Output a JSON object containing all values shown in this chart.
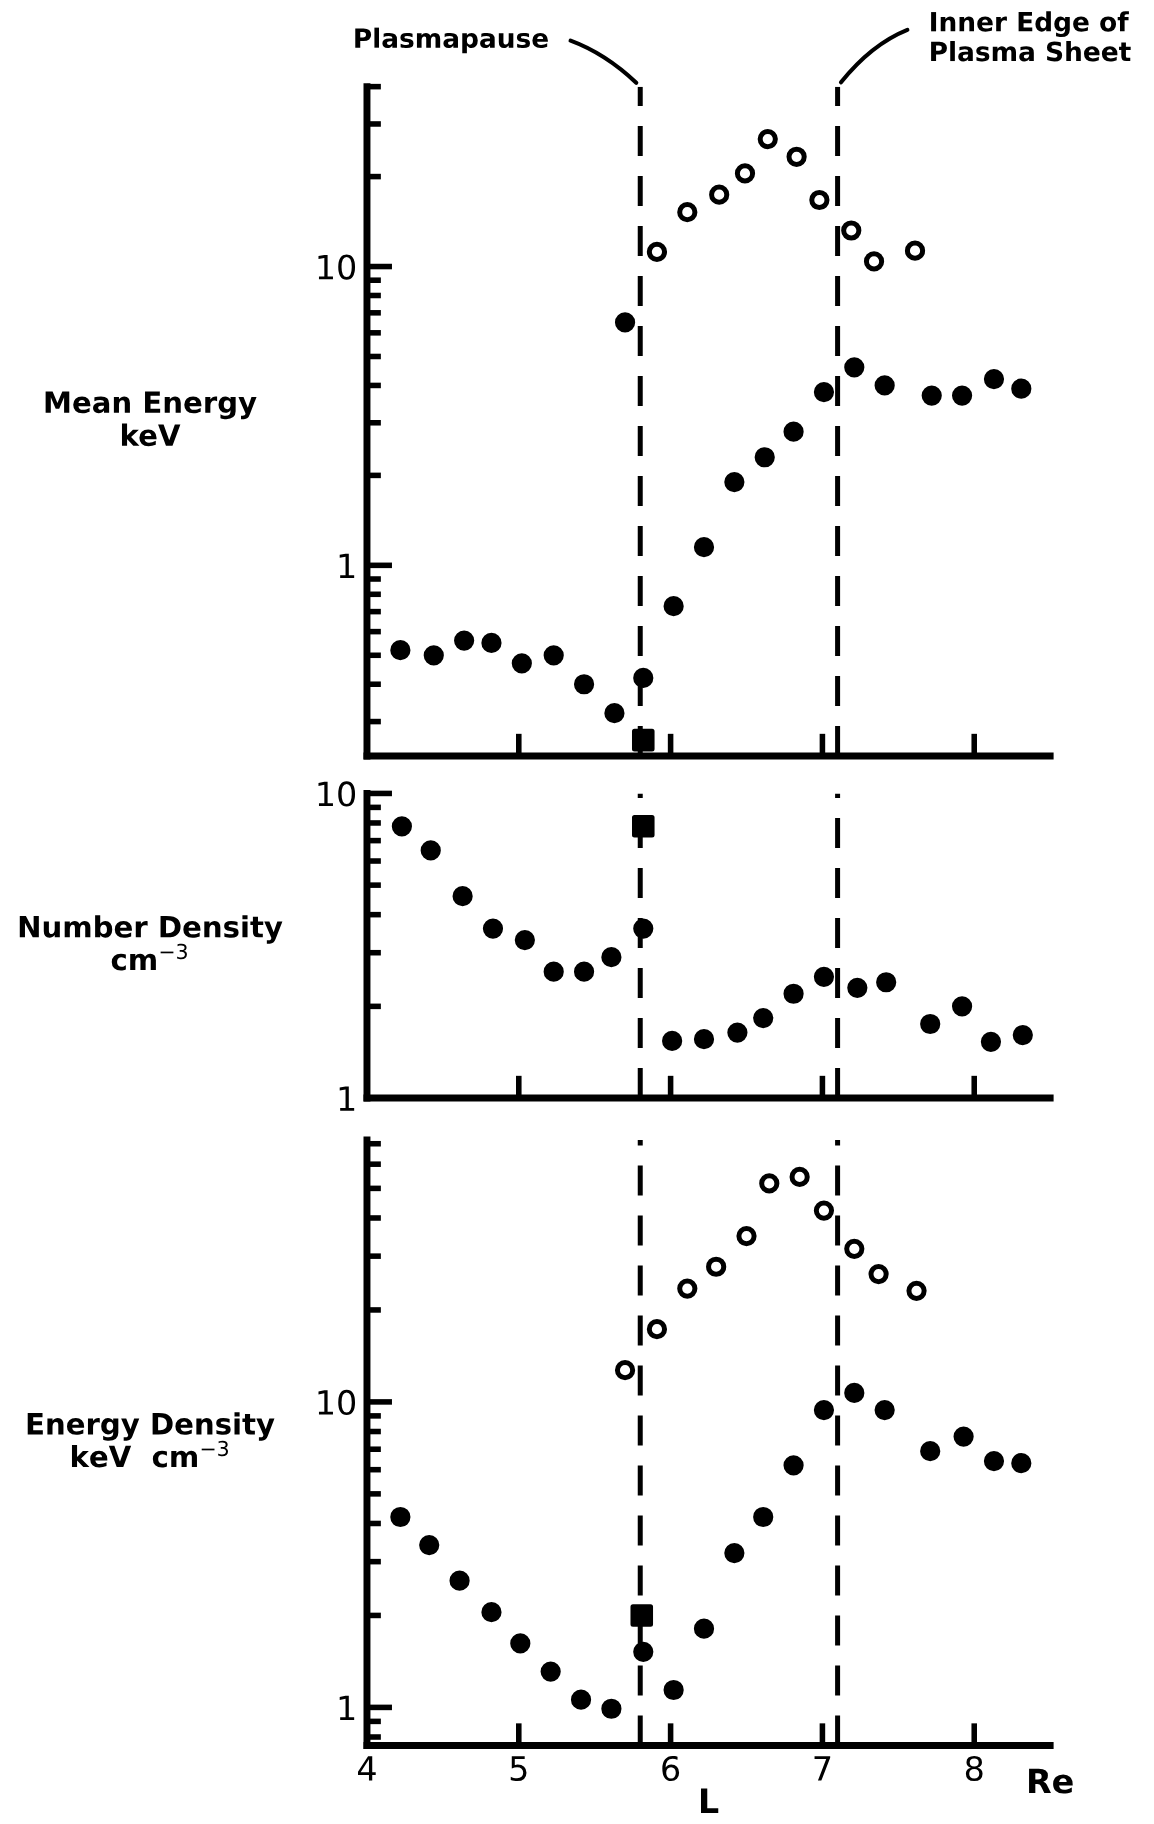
{
  "chart_data": [
    {
      "type": "scatter",
      "ylabel": "Mean Energy\nkeV",
      "log": "y",
      "xlim": [
        4,
        8.5
      ],
      "ylim": [
        0.23,
        40
      ],
      "xticks": [
        {
          "value": 4,
          "label": null
        },
        {
          "value": 5,
          "label": null
        },
        {
          "value": 6,
          "label": null
        },
        {
          "value": 7,
          "label": null
        },
        {
          "value": 8,
          "label": null
        }
      ],
      "yticks": [
        {
          "value": 0.3,
          "label": null
        },
        {
          "value": 0.4,
          "label": null
        },
        {
          "value": 0.5,
          "label": null
        },
        {
          "value": 0.6,
          "label": null
        },
        {
          "value": 0.7,
          "label": null
        },
        {
          "value": 0.8,
          "label": null
        },
        {
          "value": 0.9,
          "label": null
        },
        1,
        {
          "value": 2,
          "label": null
        },
        {
          "value": 3,
          "label": null
        },
        {
          "value": 4,
          "label": null
        },
        {
          "value": 5,
          "label": null
        },
        {
          "value": 6,
          "label": null
        },
        {
          "value": 7,
          "label": null
        },
        {
          "value": 8,
          "label": null
        },
        {
          "value": 9,
          "label": null
        },
        10,
        {
          "value": 20,
          "label": null
        },
        {
          "value": 30,
          "label": null
        },
        {
          "value": 40,
          "label": null
        }
      ],
      "tick_labels": "y",
      "grid": false,
      "legend": false,
      "series": [
        {
          "color": "#ffffff",
          "marker": "circle",
          "x": [
            5.91,
            6.11,
            6.32,
            6.49,
            6.64,
            6.83,
            6.98,
            7.19,
            7.34,
            7.61
          ],
          "values": [
            11.2,
            15.2,
            17.4,
            20.5,
            26.7,
            23.3,
            16.7,
            13.2,
            10.4,
            11.3
          ]
        },
        {
          "color": "#000000",
          "marker": "circle",
          "x": [
            4.22,
            4.44,
            4.64,
            4.82,
            5.02,
            5.23,
            5.43,
            5.63,
            5.82,
            6.02,
            6.22,
            6.42,
            6.62,
            6.81,
            7.01,
            7.21,
            7.41,
            7.72,
            7.92,
            8.13,
            8.31
          ],
          "values": [
            0.52,
            0.5,
            0.56,
            0.55,
            0.47,
            0.5,
            0.4,
            0.32,
            0.42,
            0.73,
            1.15,
            1.9,
            2.3,
            2.8,
            3.8,
            4.6,
            4.0,
            3.7,
            3.7,
            4.2,
            3.9
          ]
        },
        {
          "color": "#000000",
          "marker": "circle",
          "x": [
            5.7
          ],
          "values": [
            6.5
          ]
        },
        {
          "color": "#000000",
          "marker": "square",
          "x": [
            5.82
          ],
          "values": [
            0.26
          ]
        }
      ],
      "ref_lines": [
        {
          "axis": "x",
          "value": 5.8,
          "label": "Plasmapause",
          "line_style": "dashed",
          "color": "#000000"
        },
        {
          "axis": "x",
          "value": 7.1,
          "label": "Inner Edge of\nPlasma Sheet",
          "line_style": "dashed",
          "color": "#000000"
        }
      ]
    },
    {
      "type": "scatter",
      "ylabel": "Number Density\ncm$^{−3}$",
      "log": "y",
      "xlim": [
        4,
        8.5
      ],
      "ylim": [
        1,
        10
      ],
      "xticks": [
        {
          "value": 4,
          "label": null
        },
        {
          "value": 5,
          "label": null
        },
        {
          "value": 6,
          "label": null
        },
        {
          "value": 7,
          "label": null
        },
        {
          "value": 8,
          "label": null
        }
      ],
      "yticks": [
        1,
        {
          "value": 2,
          "label": null
        },
        {
          "value": 3,
          "label": null
        },
        {
          "value": 4,
          "label": null
        },
        {
          "value": 5,
          "label": null
        },
        {
          "value": 6,
          "label": null
        },
        {
          "value": 7,
          "label": null
        },
        {
          "value": 8,
          "label": null
        },
        {
          "value": 9,
          "label": null
        },
        10
      ],
      "tick_labels": "y",
      "grid": false,
      "legend": false,
      "series": [
        {
          "color": "#000000",
          "marker": "circle",
          "x": [
            4.23,
            4.42,
            4.63,
            4.83,
            5.04,
            5.23,
            5.43,
            5.61,
            5.82,
            6.01,
            6.22,
            6.44,
            6.61,
            6.81,
            7.01,
            7.23,
            7.42,
            7.71,
            7.92,
            8.11,
            8.32
          ],
          "values": [
            7.8,
            6.5,
            4.6,
            3.6,
            3.3,
            2.6,
            2.6,
            2.9,
            3.6,
            1.54,
            1.56,
            1.64,
            1.83,
            2.2,
            2.5,
            2.3,
            2.4,
            1.75,
            2.0,
            1.53,
            1.61
          ]
        },
        {
          "color": "#000000",
          "marker": "square",
          "x": [
            5.82
          ],
          "values": [
            7.8
          ]
        }
      ],
      "ref_lines": [
        {
          "axis": "x",
          "value": 5.8,
          "line_style": "dashed",
          "color": "#000000"
        },
        {
          "axis": "x",
          "value": 7.1,
          "line_style": "dashed",
          "color": "#000000"
        }
      ]
    },
    {
      "type": "scatter",
      "ylabel": "Energy Density\nkeV  cm$^{−3}$",
      "xlabel": "L",
      "log": "y",
      "xlim": [
        4,
        8.5
      ],
      "ylim": [
        0.75,
        72
      ],
      "xticks": [
        4,
        5,
        6,
        7,
        8
      ],
      "yticks": [
        {
          "value": 0.8,
          "label": null
        },
        {
          "value": 0.9,
          "label": null
        },
        1,
        {
          "value": 2,
          "label": null
        },
        {
          "value": 3,
          "label": null
        },
        {
          "value": 4,
          "label": null
        },
        {
          "value": 5,
          "label": null
        },
        {
          "value": 6,
          "label": null
        },
        {
          "value": 7,
          "label": null
        },
        {
          "value": 8,
          "label": null
        },
        {
          "value": 9,
          "label": null
        },
        10,
        {
          "value": 20,
          "label": null
        },
        {
          "value": 30,
          "label": null
        },
        {
          "value": 40,
          "label": null
        },
        {
          "value": 50,
          "label": null
        },
        {
          "value": 60,
          "label": null
        },
        {
          "value": 70,
          "label": null
        }
      ],
      "grid": false,
      "legend": false,
      "annotations": [
        "Re"
      ],
      "series": [
        {
          "color": "#ffffff",
          "marker": "circle",
          "x": [
            5.7,
            5.91,
            6.11,
            6.3,
            6.5,
            6.65,
            6.85,
            7.01,
            7.21,
            7.37,
            7.62
          ],
          "values": [
            12.7,
            17.3,
            23.5,
            27.7,
            34.9,
            51.9,
            54.5,
            42.3,
            31.7,
            26.2,
            23.1
          ]
        },
        {
          "color": "#000000",
          "marker": "circle",
          "x": [
            4.22,
            4.41,
            4.61,
            4.82,
            5.01,
            5.21,
            5.41,
            5.61,
            5.82,
            6.02,
            6.22,
            6.42,
            6.61,
            6.81,
            7.01,
            7.21,
            7.41,
            7.71,
            7.93,
            8.13,
            8.31
          ],
          "values": [
            4.2,
            3.4,
            2.6,
            2.05,
            1.62,
            1.31,
            1.06,
            0.99,
            1.52,
            1.14,
            1.81,
            3.2,
            4.2,
            6.2,
            9.4,
            10.7,
            9.4,
            6.9,
            7.7,
            6.4,
            6.3
          ]
        },
        {
          "color": "#000000",
          "marker": "square",
          "x": [
            5.81
          ],
          "values": [
            2.0
          ]
        }
      ],
      "ref_lines": [
        {
          "axis": "x",
          "value": 5.8,
          "line_style": "dashed",
          "color": "#000000"
        },
        {
          "axis": "x",
          "value": 7.1,
          "line_style": "dashed",
          "color": "#000000"
        }
      ]
    }
  ]
}
